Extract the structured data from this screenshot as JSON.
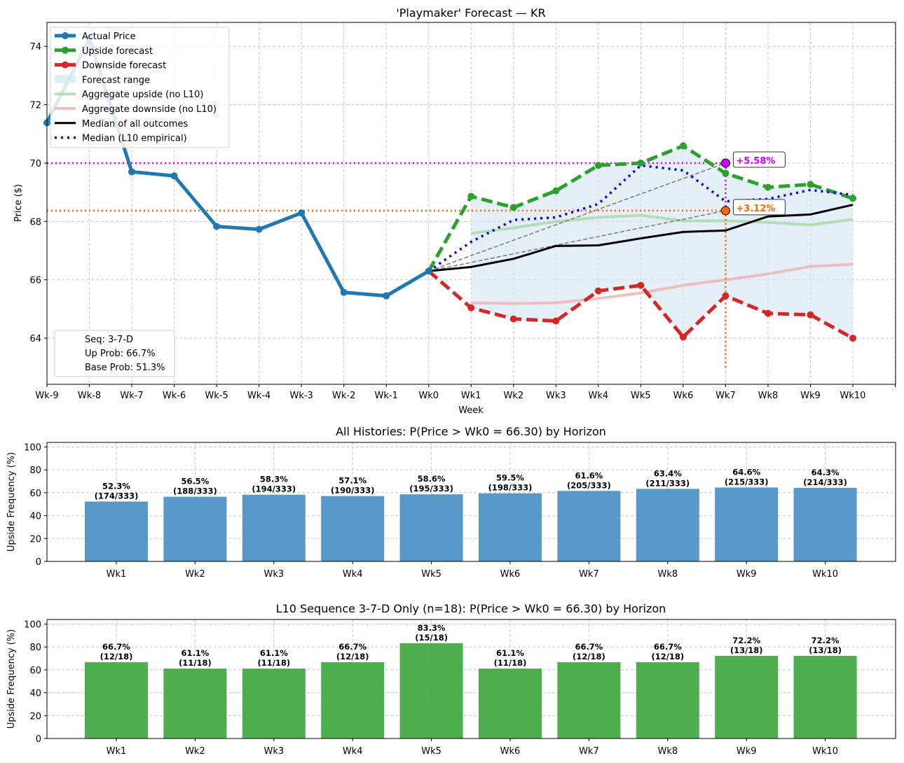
{
  "chart_data": [
    {
      "type": "line",
      "title": "'Playmaker' Forecast — KR",
      "xlabel": "Week",
      "ylabel": "Price ($)",
      "x_ticks": [
        "Wk-9",
        "Wk-8",
        "Wk-7",
        "Wk-6",
        "Wk-5",
        "Wk-4",
        "Wk-3",
        "Wk-2",
        "Wk-1",
        "Wk0",
        "Wk1",
        "Wk2",
        "Wk3",
        "Wk4",
        "Wk5",
        "Wk6",
        "Wk7",
        "Wk8",
        "Wk9",
        "Wk10"
      ],
      "y_ticks": [
        64,
        66,
        68,
        70,
        72,
        74
      ],
      "ylim": [
        62.42,
        74.82
      ],
      "grid": true,
      "legend_position": "top-left",
      "series": [
        {
          "name": "Actual Price",
          "color": "#1f77b4",
          "x": [
            "Wk-9",
            "Wk-8",
            "Wk-7",
            "Wk-6",
            "Wk-5",
            "Wk-4",
            "Wk-3",
            "Wk-2",
            "Wk-1",
            "Wk0"
          ],
          "values": [
            71.38,
            74.26,
            69.7,
            69.56,
            67.83,
            67.73,
            68.29,
            65.57,
            65.45,
            66.3
          ]
        },
        {
          "name": "Upside forecast",
          "color": "#2ca02c",
          "x": [
            "Wk0",
            "Wk1",
            "Wk2",
            "Wk3",
            "Wk4",
            "Wk5",
            "Wk6",
            "Wk7",
            "Wk8",
            "Wk9",
            "Wk10"
          ],
          "values": [
            66.3,
            68.86,
            68.48,
            69.05,
            69.92,
            70.0,
            70.59,
            69.65,
            69.17,
            69.27,
            68.79
          ]
        },
        {
          "name": "Downside forecast",
          "color": "#d62728",
          "x": [
            "Wk0",
            "Wk1",
            "Wk2",
            "Wk3",
            "Wk4",
            "Wk5",
            "Wk6",
            "Wk7",
            "Wk8",
            "Wk9",
            "Wk10"
          ],
          "values": [
            66.3,
            65.04,
            64.66,
            64.59,
            65.62,
            65.81,
            64.04,
            65.45,
            64.85,
            64.8,
            64.0
          ]
        },
        {
          "name": "Forecast range",
          "color": "#d6e6f2"
        },
        {
          "name": "Aggregate upside (no L10)",
          "color": "#a8d8a8",
          "x": [
            "Wk1",
            "Wk2",
            "Wk3",
            "Wk4",
            "Wk5",
            "Wk6",
            "Wk7",
            "Wk8",
            "Wk9",
            "Wk10"
          ],
          "values": [
            67.59,
            67.78,
            68.0,
            68.14,
            68.21,
            68.02,
            68.02,
            67.97,
            67.88,
            68.07
          ]
        },
        {
          "name": "Aggregate downside (no L10)",
          "color": "#f0b0b0",
          "x": [
            "Wk1",
            "Wk2",
            "Wk3",
            "Wk4",
            "Wk5",
            "Wk6",
            "Wk7",
            "Wk8",
            "Wk9",
            "Wk10"
          ],
          "values": [
            65.21,
            65.19,
            65.21,
            65.36,
            65.55,
            65.81,
            66.0,
            66.2,
            66.46,
            66.53
          ]
        },
        {
          "name": "Median of all outcomes",
          "color": "#000000",
          "x": [
            "Wk0",
            "Wk1",
            "Wk2",
            "Wk3",
            "Wk4",
            "Wk5",
            "Wk6",
            "Wk7",
            "Wk8",
            "Wk9",
            "Wk10"
          ],
          "values": [
            66.3,
            66.44,
            66.72,
            67.16,
            67.18,
            67.42,
            67.64,
            67.69,
            68.17,
            68.24,
            68.57
          ]
        },
        {
          "name": "Median (L10 empirical)",
          "color": "#0000ff",
          "x": [
            "Wk0",
            "Wk1",
            "Wk2",
            "Wk3",
            "Wk4",
            "Wk5",
            "Wk6",
            "Wk7",
            "Wk8",
            "Wk9",
            "Wk10"
          ],
          "values": [
            66.3,
            67.3,
            68.05,
            68.14,
            68.6,
            69.92,
            69.75,
            68.69,
            68.77,
            69.08,
            68.91
          ]
        }
      ],
      "targets": [
        {
          "label": "+5.58%",
          "value": 70.0,
          "x": "Wk7",
          "color": "#cc00ff"
        },
        {
          "label": "+3.12%",
          "value": 68.37,
          "x": "Wk7",
          "color": "#ff6600"
        }
      ],
      "info_box": [
        "Seq: 3-7-D",
        "Up Prob: 66.7%",
        "Base Prob: 51.3%"
      ]
    },
    {
      "type": "bar",
      "title": "All Histories: P(Price > Wk0 = 66.30) by Horizon",
      "ylabel": "Upside Frequency (%)",
      "color": "#4a90c4",
      "categories": [
        "Wk1",
        "Wk2",
        "Wk3",
        "Wk4",
        "Wk5",
        "Wk6",
        "Wk7",
        "Wk8",
        "Wk9",
        "Wk10"
      ],
      "values": [
        52.3,
        56.5,
        58.3,
        57.1,
        58.6,
        59.5,
        61.6,
        63.4,
        64.6,
        64.3
      ],
      "labels": [
        "52.3%",
        "56.5%",
        "58.3%",
        "57.1%",
        "58.6%",
        "59.5%",
        "61.6%",
        "63.4%",
        "64.6%",
        "64.3%"
      ],
      "counts": [
        "(174/333)",
        "(188/333)",
        "(194/333)",
        "(190/333)",
        "(195/333)",
        "(198/333)",
        "(205/333)",
        "(211/333)",
        "(215/333)",
        "(214/333)"
      ],
      "y_ticks": [
        0,
        20,
        40,
        60,
        80,
        100
      ],
      "ylim": [
        0,
        104
      ],
      "grid": true
    },
    {
      "type": "bar",
      "title": "L10 Sequence 3-7-D Only (n=18): P(Price > Wk0 = 66.30) by Horizon",
      "ylabel": "Upside Frequency (%)",
      "color": "#3fa63f",
      "categories": [
        "Wk1",
        "Wk2",
        "Wk3",
        "Wk4",
        "Wk5",
        "Wk6",
        "Wk7",
        "Wk8",
        "Wk9",
        "Wk10"
      ],
      "values": [
        66.7,
        61.1,
        61.1,
        66.7,
        83.3,
        61.1,
        66.7,
        66.7,
        72.2,
        72.2
      ],
      "labels": [
        "66.7%",
        "61.1%",
        "61.1%",
        "66.7%",
        "83.3%",
        "61.1%",
        "66.7%",
        "66.7%",
        "72.2%",
        "72.2%"
      ],
      "counts": [
        "(12/18)",
        "(11/18)",
        "(11/18)",
        "(12/18)",
        "(15/18)",
        "(11/18)",
        "(12/18)",
        "(12/18)",
        "(13/18)",
        "(13/18)"
      ],
      "y_ticks": [
        0,
        20,
        40,
        60,
        80,
        100
      ],
      "ylim": [
        0,
        104
      ],
      "grid": true
    }
  ]
}
